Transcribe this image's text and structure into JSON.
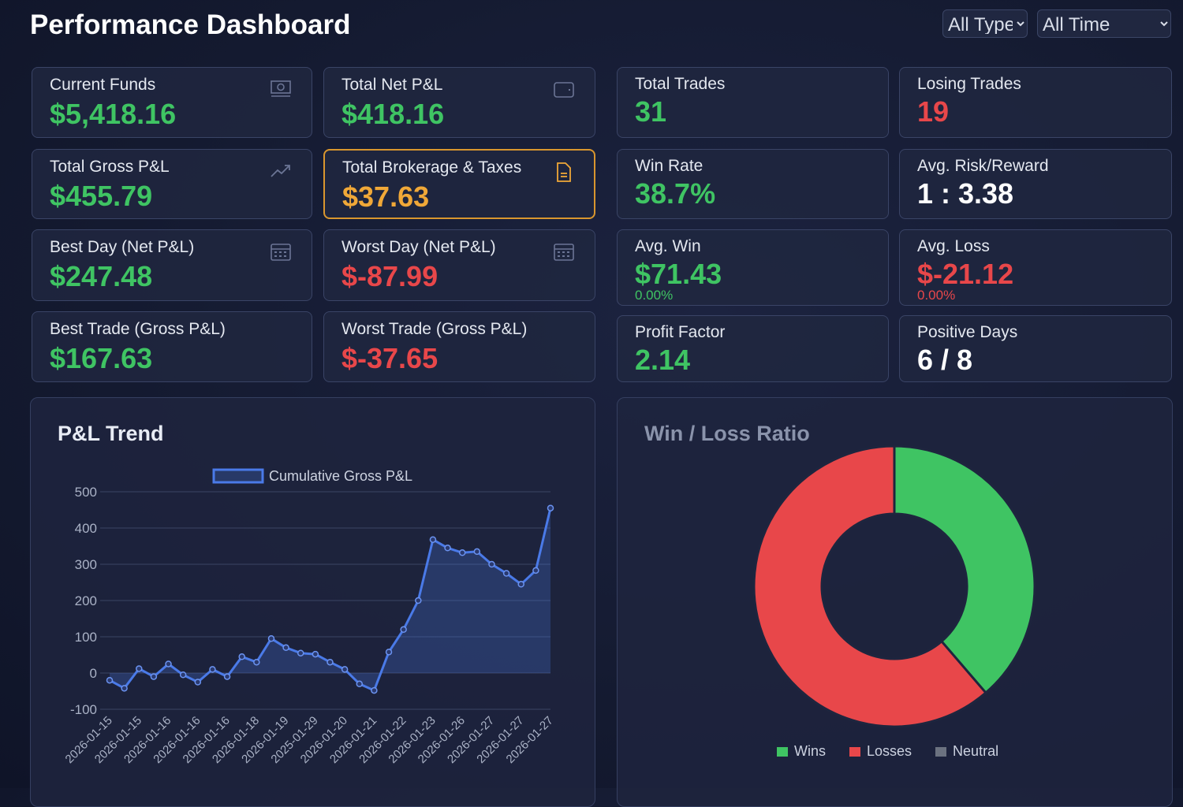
{
  "header": {
    "title": "Performance Dashboard",
    "filters": [
      "All Types",
      "All Time"
    ]
  },
  "cards": [
    {
      "label": "Current Funds",
      "value": "$5,418.16",
      "color": "green",
      "icon": "money-icon"
    },
    {
      "label": "Total Net P&L",
      "value": "$418.16",
      "color": "green",
      "icon": "wallet-icon"
    },
    {
      "label": "Total Gross P&L",
      "value": "$455.79",
      "color": "green",
      "icon": "trending-up-icon"
    },
    {
      "label": "Total Brokerage & Taxes",
      "value": "$37.63",
      "color": "orange",
      "icon": "document-icon"
    },
    {
      "label": "Best Day (Net P&L)",
      "value": "$247.48",
      "color": "green",
      "icon": "calendar-icon"
    },
    {
      "label": "Worst Day (Net P&L)",
      "value": "$-87.99",
      "color": "red",
      "icon": "calendar-icon"
    },
    {
      "label": "Best Trade (Gross P&L)",
      "value": "$167.63",
      "color": "green"
    },
    {
      "label": "Worst Trade (Gross P&L)",
      "value": "$-37.65",
      "color": "red"
    }
  ],
  "stats": [
    {
      "label": "Total Trades",
      "value": "31",
      "color": "green"
    },
    {
      "label": "Losing Trades",
      "value": "19",
      "color": "red"
    },
    {
      "label": "Win Rate",
      "value": "38.7%",
      "color": "green"
    },
    {
      "label": "Avg. Risk/Reward",
      "value": "1 : 3.38",
      "color": "white"
    },
    {
      "label": "Avg. Win",
      "value": "$71.43",
      "sub": "0.00%",
      "color": "green"
    },
    {
      "label": "Avg. Loss",
      "value": "$-21.12",
      "sub": "0.00%",
      "color": "red"
    },
    {
      "label": "Profit Factor",
      "value": "2.14",
      "color": "green"
    },
    {
      "label": "Positive Days",
      "value": "6 / 8",
      "color": "white"
    }
  ],
  "colors": {
    "green": "#3fc463",
    "red": "#e8474a",
    "orange": "#f0a838",
    "line": "#4a7ae8",
    "neutral": "#6b7280"
  },
  "chart_data": [
    {
      "type": "line",
      "title": "P&L Trend",
      "series": [
        {
          "name": "Cumulative Gross P&L",
          "values": [
            -20,
            -42,
            12,
            -10,
            25,
            -5,
            -25,
            10,
            -10,
            45,
            30,
            95,
            70,
            55,
            52,
            30,
            10,
            -30,
            -48,
            58,
            120,
            200,
            368,
            345,
            332,
            335,
            300,
            275,
            245,
            283,
            455
          ]
        }
      ],
      "x_tick_labels": [
        "2026-01-15",
        "2026-01-15",
        "2026-01-16",
        "2026-01-16",
        "2026-01-16",
        "2026-01-18",
        "2026-01-19",
        "2025-01-29",
        "2026-01-20",
        "2026-01-21",
        "2026-01-22",
        "2026-01-23",
        "2026-01-26",
        "2026-01-27",
        "2026-01-27",
        "2026-01-27"
      ],
      "ylim": [
        -100,
        500
      ],
      "yticks": [
        500,
        400,
        300,
        200,
        100,
        0,
        -100
      ],
      "grid": true,
      "legend": "top",
      "fill": true
    },
    {
      "type": "pie",
      "title": "Win / Loss Ratio",
      "categories": [
        "Wins",
        "Losses",
        "Neutral"
      ],
      "values": [
        12,
        19,
        0
      ],
      "donut": true,
      "legend": "bottom"
    }
  ]
}
